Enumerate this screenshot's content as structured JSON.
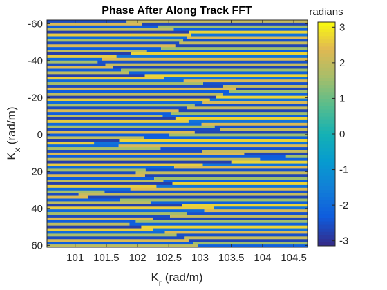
{
  "chart_data": {
    "type": "heatmap",
    "title": "Phase After Along Track FFT",
    "xlabel": "K",
    "xlabel_sub": "r",
    "xlabel_unit": "(rad/m)",
    "ylabel": "K",
    "ylabel_sub": "x",
    "ylabel_unit": "(rad/m)",
    "xlim": [
      100.55,
      104.72
    ],
    "ylim": [
      -62,
      61
    ],
    "y_direction": "reverse",
    "x_ticks": [
      101,
      101.5,
      102,
      102.5,
      103,
      103.5,
      104,
      104.5
    ],
    "x_tick_labels": [
      "101",
      "101.5",
      "102",
      "102.5",
      "103",
      "103.5",
      "104",
      "104.5"
    ],
    "y_ticks": [
      -60,
      -40,
      -20,
      0,
      20,
      40,
      60
    ],
    "y_tick_labels": [
      "-60",
      "-40",
      "-20",
      "0",
      "20",
      "40",
      "60"
    ],
    "colorbar": {
      "label": "radians",
      "limits": [
        -3.1416,
        3.1416
      ],
      "ticks": [
        -3,
        -2,
        -1,
        0,
        1,
        2,
        3
      ],
      "tick_labels": [
        "-3",
        "-2",
        "-1",
        "0",
        "1",
        "2",
        "3"
      ],
      "colormap": "parula"
    },
    "pattern": {
      "description_values": "horizontal phase stripes alternating between roughly -2.5 rad and +2.2 rad, with a boundary region where the stripe phases flip",
      "row_count": 84,
      "row_phase_a": [
        -2.6,
        2.3,
        -2.3,
        1.9,
        -2.8,
        2.6,
        -2.0,
        1.6
      ],
      "row_phase_b": [
        2.0,
        -2.7,
        1.5,
        -2.2,
        2.7,
        -1.8,
        2.3,
        -2.5
      ],
      "boundary_kr_at_kx": [
        [
          -62,
          101.7
        ],
        [
          -55,
          102.9
        ],
        [
          -48,
          102.6
        ],
        [
          -40,
          101.3
        ],
        [
          -33,
          101.9
        ],
        [
          -25,
          103.6
        ],
        [
          -18,
          103.1
        ],
        [
          -10,
          102.4
        ],
        [
          -3,
          103.4
        ],
        [
          5,
          101.2
        ],
        [
          12,
          104.4
        ],
        [
          20,
          101.9
        ],
        [
          27,
          102.6
        ],
        [
          33,
          100.9
        ],
        [
          40,
          103.3
        ],
        [
          48,
          101.8
        ],
        [
          55,
          102.7
        ],
        [
          61,
          103.0
        ]
      ]
    },
    "grid": false,
    "legend": "none"
  }
}
